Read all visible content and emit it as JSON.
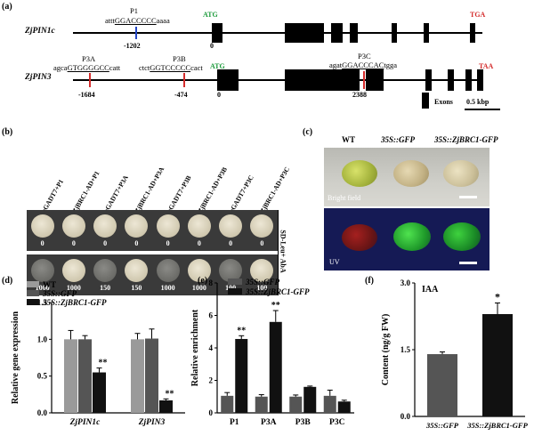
{
  "panel_a": {
    "label": "(a)",
    "gene1": {
      "name": "ZjPIN1c",
      "start_codon": "ATG",
      "stop_codon": "TGA",
      "site": {
        "name": "P1",
        "seq_pre": "attt",
        "seq_core": "GGACCCCC",
        "seq_post": "aaaa",
        "pos": "-1202"
      },
      "zero": "0"
    },
    "gene2": {
      "name": "ZjPIN3",
      "start_codon": "ATG",
      "stop_codon": "TAA",
      "sites": [
        {
          "name": "P3A",
          "seq_pre": "agca",
          "seq_core": "GTGGGGCC",
          "seq_post": "catt",
          "pos": "-1684"
        },
        {
          "name": "P3B",
          "seq_pre": "ctct",
          "seq_core": "GGTCCCCC",
          "seq_post": "cact",
          "pos": "-474"
        },
        {
          "name": "P3C",
          "seq_pre": "agat",
          "seq_core": "GGACCCAC",
          "seq_post": "tgga",
          "pos": "2388"
        }
      ],
      "zero": "0"
    },
    "legend_exons": "Exons",
    "scale": "0.5 kbp"
  },
  "panel_b": {
    "label": "(b)",
    "columns": [
      "pGADT7+P1",
      "ZjBRC1-AD+P1",
      "pGADT7+P3A",
      "ZjBRC1-AD+P3A",
      "pGADT7+P3B",
      "ZjBRC1-AD+P3B",
      "pGADT7+P3C",
      "ZjBRC1-AD+P3C"
    ],
    "row1_values": [
      "0",
      "0",
      "0",
      "0",
      "0",
      "0",
      "0",
      "0"
    ],
    "row2_values": [
      "1000",
      "1000",
      "150",
      "150",
      "1000",
      "1000",
      "100",
      "100"
    ],
    "side_label": "SD-Leu+ AbA"
  },
  "panel_c": {
    "label": "(c)",
    "columns": [
      "WT",
      "35S::GFP",
      "35S::ZjBRC1-GFP"
    ],
    "top_label": "Bright field",
    "bottom_label": "UV"
  },
  "panel_d": {
    "label": "(d)",
    "chart_data": {
      "type": "bar",
      "categories": [
        "ZjPIN1c",
        "ZjPIN3"
      ],
      "series": [
        {
          "name": "WT",
          "values": [
            1.0,
            1.0
          ],
          "errors": [
            0.12,
            0.08
          ],
          "color": "#9a9a9a"
        },
        {
          "name": "35S::GFP",
          "values": [
            1.0,
            1.01
          ],
          "errors": [
            0.05,
            0.13
          ],
          "color": "#555555"
        },
        {
          "name": "35S::ZjBRC1-GFP",
          "values": [
            0.55,
            0.17
          ],
          "errors": [
            0.06,
            0.02
          ],
          "color": "#111111"
        }
      ],
      "significance": [
        "**",
        "**"
      ],
      "ylabel": "Relative gene expression",
      "ylim": [
        0,
        1.5
      ],
      "yticks": [
        "0.0",
        "0.5",
        "1.0",
        "1.5"
      ]
    }
  },
  "panel_e": {
    "label": "(e)",
    "chart_data": {
      "type": "bar",
      "categories": [
        "P1",
        "P3A",
        "P3B",
        "P3C"
      ],
      "series": [
        {
          "name": "35S::GFP",
          "values": [
            1.05,
            1.0,
            1.0,
            1.05
          ],
          "errors": [
            0.2,
            0.12,
            0.1,
            0.35
          ],
          "color": "#555555"
        },
        {
          "name": "35S::ZjBRC1-GFP",
          "values": [
            4.55,
            5.6,
            1.6,
            0.7
          ],
          "errors": [
            0.2,
            0.7,
            0.05,
            0.08
          ],
          "color": "#111111"
        }
      ],
      "significance": [
        "**",
        "**",
        "",
        ""
      ],
      "ylabel": "Relative enrichment",
      "ylim": [
        0,
        8
      ],
      "yticks": [
        "0",
        "2",
        "4",
        "6",
        "8"
      ]
    }
  },
  "panel_f": {
    "label": "(f)",
    "chart_data": {
      "type": "bar",
      "title": "IAA",
      "categories": [
        "35S::GFP",
        "35S::ZjBRC1-GFP"
      ],
      "values": [
        1.4,
        2.3
      ],
      "errors": [
        0.05,
        0.25
      ],
      "colors": [
        "#555555",
        "#111111"
      ],
      "significance": [
        "",
        "*"
      ],
      "ylabel": "Content (ng/g FW)",
      "ylim": [
        0,
        3.0
      ],
      "yticks": [
        "0.0",
        "1.5",
        "3.0"
      ]
    }
  }
}
